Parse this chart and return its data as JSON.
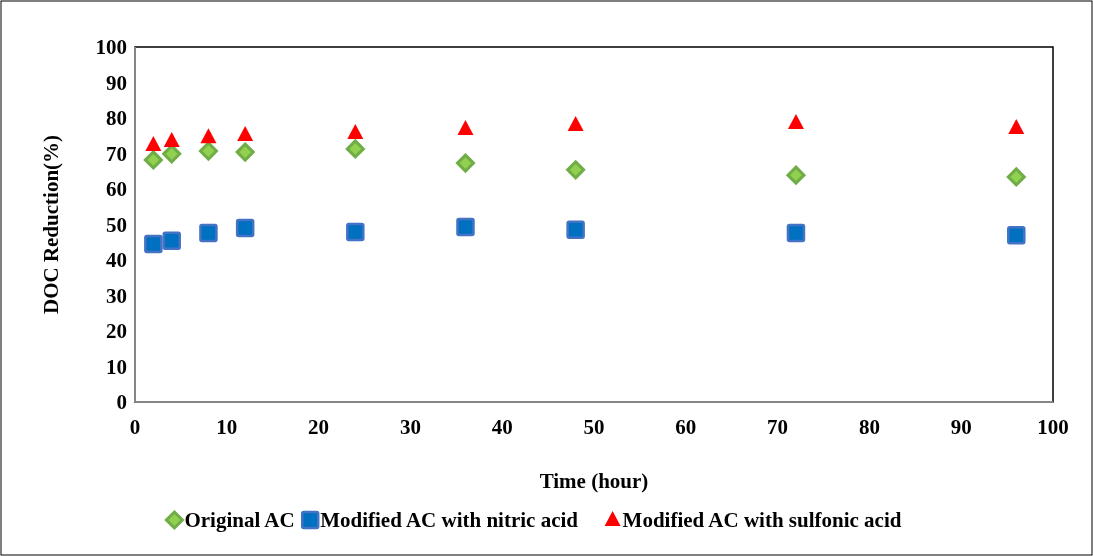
{
  "chart_data": {
    "type": "scatter",
    "xlabel": "Time (hour)",
    "ylabel": "DOC Reduction(%)",
    "x": [
      2,
      4,
      8,
      12,
      24,
      36,
      48,
      72,
      96
    ],
    "xlim": [
      0,
      100
    ],
    "xticks": [
      0,
      10,
      20,
      30,
      40,
      50,
      60,
      70,
      80,
      90,
      100
    ],
    "ylim": [
      0,
      100
    ],
    "yticks": [
      0,
      10,
      20,
      30,
      40,
      50,
      60,
      70,
      80,
      90,
      100
    ],
    "grid": false,
    "legend": "bottom",
    "series": [
      {
        "name": "Original AC",
        "color": "#70ad47",
        "marker": "diamond",
        "values": [
          68.2,
          69.9,
          70.7,
          70.4,
          71.3,
          67.3,
          65.4,
          63.9,
          63.4
        ]
      },
      {
        "name": "Modified AC with nitric acid",
        "color": "#0070c0",
        "marker": "square",
        "values": [
          44.5,
          45.4,
          47.6,
          49.0,
          47.9,
          49.3,
          48.5,
          47.6,
          47.0
        ]
      },
      {
        "name": "Modified AC with sulfonic acid",
        "color": "#ff0000",
        "marker": "triangle",
        "values": [
          72.4,
          73.5,
          74.6,
          75.2,
          75.8,
          76.9,
          78.0,
          78.6,
          77.2
        ]
      }
    ]
  }
}
